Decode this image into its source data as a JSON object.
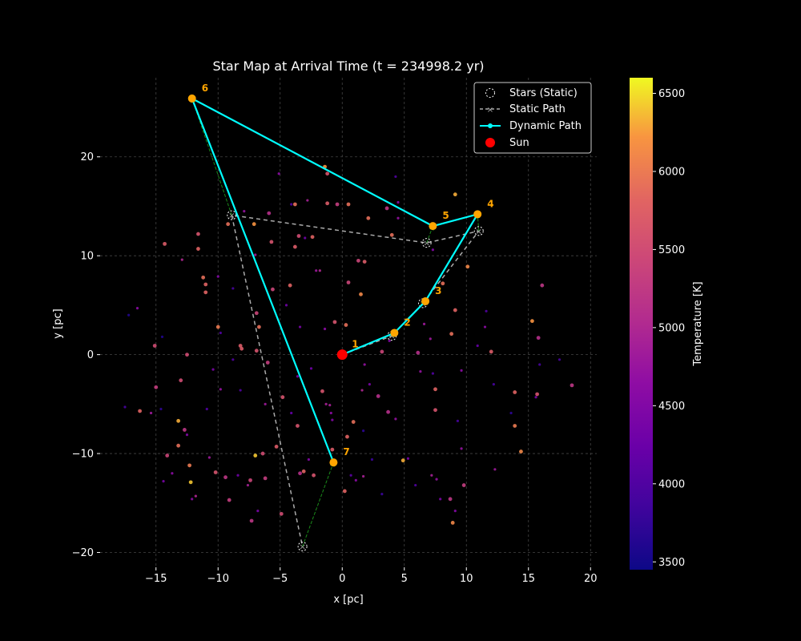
{
  "chart_data": {
    "type": "scatter",
    "title": "Star Map at Arrival Time (t = 234998.2 yr)",
    "xlabel": "x [pc]",
    "ylabel": "y [pc]",
    "xlim": [
      -19.5,
      20.5
    ],
    "ylim": [
      -21.5,
      28.0
    ],
    "xticks": [
      -15,
      -10,
      -5,
      0,
      5,
      10,
      15,
      20
    ],
    "yticks": [
      -20,
      -10,
      0,
      10,
      20
    ],
    "xtick_labels": [
      "−15",
      "−10",
      "−5",
      "0",
      "5",
      "10",
      "15",
      "20"
    ],
    "ytick_labels": [
      "−20",
      "−10",
      "0",
      "10",
      "20"
    ],
    "grid": true,
    "legend_position": "upper right",
    "colorbar": {
      "label": "Temperature [K]",
      "min": 3450,
      "max": 6600,
      "ticks": [
        3500,
        4000,
        4500,
        5000,
        5500,
        6000,
        6500
      ],
      "colormap": "plasma"
    },
    "sun": {
      "x": 0,
      "y": 0,
      "color": "#ff0000",
      "label": "Sun"
    },
    "static_path": {
      "label": "Static Path",
      "color": "#aaaaaa",
      "points": [
        [
          0,
          0
        ],
        [
          4.0,
          1.9
        ],
        [
          6.5,
          5.2
        ],
        [
          11.0,
          12.5
        ],
        [
          6.8,
          11.3
        ],
        [
          -8.9,
          14.1
        ],
        [
          -3.2,
          -19.4
        ]
      ]
    },
    "dynamic_path": {
      "label": "Dynamic Path",
      "color": "#00ffff",
      "points": [
        [
          0,
          0
        ],
        [
          4.2,
          2.2
        ],
        [
          6.7,
          5.4
        ],
        [
          10.9,
          14.2
        ],
        [
          7.3,
          13.0
        ],
        [
          -12.1,
          25.9
        ],
        [
          -0.7,
          -10.9
        ]
      ],
      "labels": [
        "1",
        "2",
        "3",
        "4",
        "5",
        "6",
        "7"
      ],
      "waypoint_color": "#ffa500"
    },
    "static_stars_label": "Stars (Static)",
    "background_stars": [
      [
        -17.5,
        -5.3,
        3900
      ],
      [
        -17.2,
        4.0,
        3600
      ],
      [
        -16.5,
        4.7,
        4600
      ],
      [
        -16.3,
        -5.7,
        5800
      ],
      [
        -15.4,
        -5.9,
        4800
      ],
      [
        -15.1,
        0.9,
        5500
      ],
      [
        -15.0,
        -3.3,
        5300
      ],
      [
        -14.6,
        -5.5,
        3700
      ],
      [
        -14.4,
        -12.8,
        4400
      ],
      [
        -14.3,
        11.2,
        5700
      ],
      [
        -14.5,
        1.8,
        3600
      ],
      [
        -14.1,
        -10.2,
        5400
      ],
      [
        -13.7,
        -12.0,
        4600
      ],
      [
        -13.2,
        -6.7,
        6300
      ],
      [
        -13.2,
        -9.2,
        5900
      ],
      [
        -13.0,
        -2.6,
        5500
      ],
      [
        -12.9,
        9.6,
        5000
      ],
      [
        -12.7,
        -7.6,
        5200
      ],
      [
        -12.5,
        -8.1,
        4500
      ],
      [
        -12.5,
        0.0,
        5500
      ],
      [
        -12.3,
        -11.2,
        6000
      ],
      [
        -12.2,
        -12.9,
        6400
      ],
      [
        -12.1,
        -14.6,
        4600
      ],
      [
        -11.8,
        -14.3,
        5000
      ],
      [
        -11.6,
        10.7,
        5800
      ],
      [
        -11.6,
        12.2,
        5600
      ],
      [
        -11.2,
        7.8,
        5900
      ],
      [
        -11.0,
        7.1,
        5800
      ],
      [
        -11.0,
        6.3,
        5800
      ],
      [
        -10.9,
        -5.5,
        4000
      ],
      [
        -10.7,
        -10.4,
        4800
      ],
      [
        -10.4,
        -1.5,
        4400
      ],
      [
        -10.2,
        -11.9,
        5600
      ],
      [
        -10.0,
        2.8,
        6000
      ],
      [
        -10.0,
        7.9,
        4500
      ],
      [
        -9.8,
        -3.5,
        4700
      ],
      [
        -9.8,
        2.2,
        4000
      ],
      [
        -9.4,
        -12.4,
        5200
      ],
      [
        -9.2,
        13.2,
        5900
      ],
      [
        -9.1,
        -14.7,
        5300
      ],
      [
        -8.8,
        -0.5,
        4000
      ],
      [
        -8.8,
        6.7,
        3900
      ],
      [
        -8.4,
        -12.2,
        4300
      ],
      [
        -8.2,
        0.9,
        5700
      ],
      [
        -8.1,
        0.6,
        5700
      ],
      [
        -8.2,
        -3.6,
        4000
      ],
      [
        -7.9,
        14.5,
        4700
      ],
      [
        -7.6,
        -13.2,
        4900
      ],
      [
        -7.4,
        -12.7,
        5400
      ],
      [
        -7.3,
        -16.8,
        5200
      ],
      [
        -7.1,
        13.2,
        6200
      ],
      [
        -7.0,
        -10.2,
        6400
      ],
      [
        -7.0,
        10.1,
        4800
      ],
      [
        -6.9,
        0.4,
        5600
      ],
      [
        -6.9,
        4.2,
        5400
      ],
      [
        -6.8,
        -15.8,
        4400
      ],
      [
        -6.7,
        2.8,
        5900
      ],
      [
        -6.4,
        -10.0,
        5500
      ],
      [
        -6.2,
        -12.5,
        5300
      ],
      [
        -6.2,
        -5.0,
        4800
      ],
      [
        -6.0,
        -0.8,
        5300
      ],
      [
        -5.9,
        14.3,
        5100
      ],
      [
        -5.7,
        11.4,
        5600
      ],
      [
        -5.6,
        6.6,
        5400
      ],
      [
        -5.3,
        -9.3,
        5700
      ],
      [
        -5.1,
        18.3,
        4600
      ],
      [
        -4.9,
        -16.1,
        5500
      ],
      [
        -4.8,
        -4.3,
        5600
      ],
      [
        -4.5,
        5.0,
        4300
      ],
      [
        -4.2,
        7.0,
        5800
      ],
      [
        -4.1,
        15.2,
        4000
      ],
      [
        -3.8,
        15.2,
        5900
      ],
      [
        -3.8,
        10.9,
        5700
      ],
      [
        -3.6,
        -7.2,
        5600
      ],
      [
        -3.5,
        12.0,
        5500
      ],
      [
        -3.4,
        -12.0,
        5100
      ],
      [
        -3.1,
        -11.8,
        5800
      ],
      [
        -3.0,
        11.8,
        4300
      ],
      [
        -2.8,
        15.6,
        4900
      ],
      [
        -2.7,
        -10.6,
        4500
      ],
      [
        -2.5,
        -1.4,
        4300
      ],
      [
        -2.4,
        11.9,
        5800
      ],
      [
        -2.3,
        -12.2,
        5600
      ],
      [
        -2.1,
        8.5,
        4800
      ],
      [
        -1.8,
        8.5,
        5000
      ],
      [
        -1.6,
        -3.7,
        5600
      ],
      [
        -1.4,
        19.0,
        6200
      ],
      [
        -1.3,
        -5.0,
        4900
      ],
      [
        -1.2,
        15.3,
        5700
      ],
      [
        -1.2,
        18.3,
        5600
      ],
      [
        -1.0,
        -5.1,
        4900
      ],
      [
        -0.9,
        -5.9,
        4600
      ],
      [
        -0.8,
        -9.6,
        5700
      ],
      [
        -0.8,
        -6.6,
        4500
      ],
      [
        -0.6,
        3.3,
        5600
      ],
      [
        -0.4,
        15.2,
        5300
      ],
      [
        0.2,
        -13.8,
        5800
      ],
      [
        0.3,
        3.0,
        5900
      ],
      [
        0.4,
        -8.3,
        5800
      ],
      [
        0.5,
        7.3,
        5400
      ],
      [
        0.5,
        15.2,
        5900
      ],
      [
        0.7,
        -12.2,
        4100
      ],
      [
        1.1,
        -12.7,
        4600
      ],
      [
        1.3,
        9.5,
        5400
      ],
      [
        1.5,
        6.1,
        6100
      ],
      [
        1.6,
        -3.6,
        5000
      ],
      [
        1.7,
        -7.7,
        3700
      ],
      [
        1.7,
        -12.3,
        4900
      ],
      [
        1.8,
        -1.0,
        4700
      ],
      [
        1.8,
        9.4,
        5700
      ],
      [
        2.1,
        13.8,
        5900
      ],
      [
        2.2,
        -3.0,
        4400
      ],
      [
        2.4,
        -10.6,
        3800
      ],
      [
        2.9,
        -4.2,
        5100
      ],
      [
        3.2,
        -14.1,
        3800
      ],
      [
        3.2,
        0.3,
        5400
      ],
      [
        3.6,
        14.8,
        5200
      ],
      [
        3.7,
        -5.8,
        5100
      ],
      [
        3.8,
        1.4,
        4500
      ],
      [
        4.0,
        12.1,
        5900
      ],
      [
        4.3,
        -6.5,
        4700
      ],
      [
        4.3,
        18.0,
        4000
      ],
      [
        4.5,
        13.8,
        4700
      ],
      [
        4.5,
        15.4,
        4500
      ],
      [
        4.9,
        -10.7,
        6300
      ],
      [
        5.3,
        -10.5,
        4400
      ],
      [
        5.9,
        -13.2,
        4000
      ],
      [
        6.1,
        0.2,
        5100
      ],
      [
        6.3,
        -1.7,
        4700
      ],
      [
        6.6,
        3.1,
        4800
      ],
      [
        7.1,
        1.6,
        4800
      ],
      [
        7.2,
        -12.2,
        4900
      ],
      [
        7.3,
        -1.9,
        4000
      ],
      [
        7.3,
        10.6,
        4500
      ],
      [
        7.5,
        -3.5,
        5800
      ],
      [
        7.5,
        -5.6,
        5600
      ],
      [
        7.6,
        -12.6,
        4700
      ],
      [
        7.9,
        -14.6,
        4400
      ],
      [
        8.1,
        7.2,
        5900
      ],
      [
        8.7,
        -14.6,
        5200
      ],
      [
        8.8,
        2.1,
        5900
      ],
      [
        8.9,
        -17.0,
        6100
      ],
      [
        9.1,
        -15.8,
        4500
      ],
      [
        9.1,
        4.5,
        5800
      ],
      [
        9.1,
        16.2,
        6300
      ],
      [
        9.3,
        -6.7,
        3900
      ],
      [
        9.6,
        -1.6,
        4600
      ],
      [
        9.6,
        -9.5,
        4700
      ],
      [
        9.8,
        -13.2,
        5300
      ],
      [
        10.1,
        8.9,
        6100
      ],
      [
        10.9,
        0.9,
        4200
      ],
      [
        11.5,
        2.8,
        4600
      ],
      [
        11.6,
        4.4,
        4000
      ],
      [
        12.0,
        0.3,
        5700
      ],
      [
        12.3,
        -11.6,
        4800
      ],
      [
        13.6,
        -5.9,
        3700
      ],
      [
        13.9,
        -3.8,
        5800
      ],
      [
        13.9,
        -7.2,
        6000
      ],
      [
        14.4,
        -9.8,
        6100
      ],
      [
        15.3,
        3.4,
        6200
      ],
      [
        15.6,
        -4.3,
        4400
      ],
      [
        15.7,
        -4.0,
        5600
      ],
      [
        15.8,
        1.7,
        5100
      ],
      [
        15.9,
        -1.0,
        3900
      ],
      [
        16.1,
        7.0,
        5200
      ],
      [
        17.5,
        -0.5,
        3900
      ],
      [
        18.5,
        -3.1,
        5200
      ],
      [
        12.2,
        -3.0,
        3900
      ],
      [
        -3.6,
        -2.2,
        4400
      ],
      [
        -4.1,
        -5.9,
        4200
      ],
      [
        -3.4,
        2.8,
        4400
      ],
      [
        -1.4,
        2.6,
        4600
      ],
      [
        0.9,
        -6.8,
        5900
      ]
    ]
  }
}
